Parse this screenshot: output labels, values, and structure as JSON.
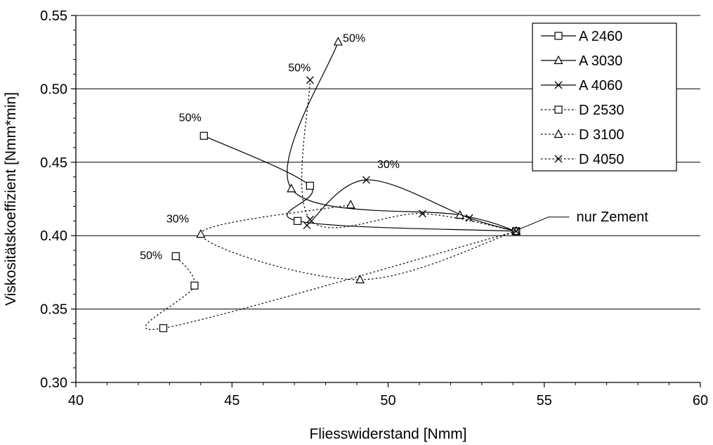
{
  "chart_data": {
    "type": "line",
    "xlabel": "Fliesswiderstand [Nmm]",
    "ylabel": "Viskositätskoeffizient [Nmm*min]",
    "xlim": [
      40,
      60
    ],
    "ylim": [
      0.3,
      0.55
    ],
    "x_ticks": [
      40,
      45,
      50,
      55,
      60
    ],
    "y_ticks": [
      0.3,
      0.35,
      0.4,
      0.45,
      0.5,
      0.55
    ],
    "x_tick_labels": [
      "40",
      "45",
      "50",
      "55",
      "60"
    ],
    "y_tick_labels": [
      "0.30",
      "0.35",
      "0.40",
      "0.45",
      "0.50",
      "0.55"
    ],
    "grid": "horizontal",
    "legend_position": "top-right",
    "series": [
      {
        "name": "A 2460",
        "marker": "square",
        "dash": "solid",
        "points": [
          [
            54.1,
            0.403
          ],
          [
            47.1,
            0.41
          ],
          [
            47.5,
            0.434
          ],
          [
            44.1,
            0.468
          ]
        ]
      },
      {
        "name": "A 3030",
        "marker": "triangle",
        "dash": "solid",
        "points": [
          [
            54.1,
            0.403
          ],
          [
            52.3,
            0.414
          ],
          [
            46.9,
            0.432
          ],
          [
            48.4,
            0.532
          ]
        ]
      },
      {
        "name": "A 4060",
        "marker": "x",
        "dash": "solid",
        "points": [
          [
            54.1,
            0.403
          ],
          [
            52.6,
            0.412
          ],
          [
            49.3,
            0.438
          ],
          [
            47.4,
            0.407
          ]
        ]
      },
      {
        "name": "D 2530",
        "marker": "square",
        "dash": "dotted",
        "points": [
          [
            54.1,
            0.403
          ],
          [
            42.8,
            0.337
          ],
          [
            43.8,
            0.366
          ],
          [
            43.2,
            0.386
          ]
        ]
      },
      {
        "name": "D 3100",
        "marker": "triangle",
        "dash": "dotted",
        "points": [
          [
            54.1,
            0.403
          ],
          [
            49.1,
            0.37
          ],
          [
            44.0,
            0.401
          ],
          [
            48.8,
            0.421
          ]
        ]
      },
      {
        "name": "D 4050",
        "marker": "x",
        "dash": "dotted",
        "points": [
          [
            54.1,
            0.403
          ],
          [
            51.1,
            0.415
          ],
          [
            47.5,
            0.411
          ],
          [
            47.5,
            0.506
          ]
        ]
      }
    ],
    "annotations": [
      {
        "text": "50%",
        "x": 48.55,
        "y": 0.532
      },
      {
        "text": "50%",
        "x": 46.8,
        "y": 0.512
      },
      {
        "text": "50%",
        "x": 43.3,
        "y": 0.478
      },
      {
        "text": "30%",
        "x": 49.65,
        "y": 0.446
      },
      {
        "text": "30%",
        "x": 42.9,
        "y": 0.409
      },
      {
        "text": "50%",
        "x": 42.05,
        "y": 0.384
      },
      {
        "text": "nur Zement",
        "x": 56.3,
        "y": 0.416
      }
    ]
  }
}
